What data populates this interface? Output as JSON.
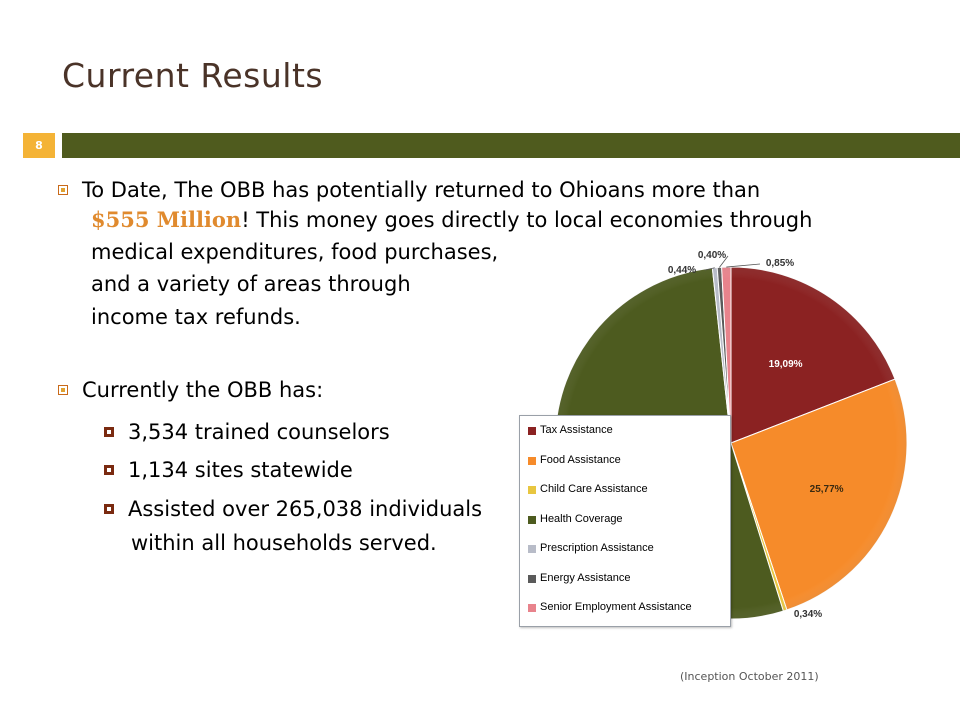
{
  "slide": {
    "title": "Current Results",
    "number": "8",
    "footnote": "(Inception October 2011)"
  },
  "bullets": {
    "b1_line1": "To Date, The OBB has potentially returned to Ohioans more than",
    "b1_money": "$555 Million",
    "b1_line2_rest": "!  This money goes directly to local economies through",
    "b1_line3": "medical expenditures, food purchases,",
    "b1_line4": "and a variety of areas through",
    "b1_line5": "income tax refunds.",
    "b2": "Currently the OBB has:",
    "sub1": "3,534 trained counselors",
    "sub2": "1,134 sites statewide",
    "sub3_line1": "Assisted over 265,038 individuals",
    "sub3_line2": "within all households served."
  },
  "chart_data": {
    "type": "pie",
    "series": [
      {
        "name": "Tax Assistance",
        "value": 19.09,
        "label": "19,09%",
        "color": "#8b2222"
      },
      {
        "name": "Food Assistance",
        "value": 25.77,
        "label": "25,77%",
        "color": "#f68b2a"
      },
      {
        "name": "Child Care Assistance",
        "value": 0.34,
        "label": "0,34%",
        "color": "#e8c640"
      },
      {
        "name": "Health Coverage",
        "value": 53.12,
        "label": "53,12%",
        "color": "#4d5b1f"
      },
      {
        "name": "Prescription Assistance",
        "value": 0.44,
        "label": "0,44%",
        "color": "#b8bcc8"
      },
      {
        "name": "Energy Assistance",
        "value": 0.4,
        "label": "0,40%",
        "color": "#5a5a5a"
      },
      {
        "name": "Senior Employment Assistance",
        "value": 0.85,
        "label": "0,85%",
        "color": "#e8838c"
      }
    ],
    "legend_position": "bottom-left"
  }
}
